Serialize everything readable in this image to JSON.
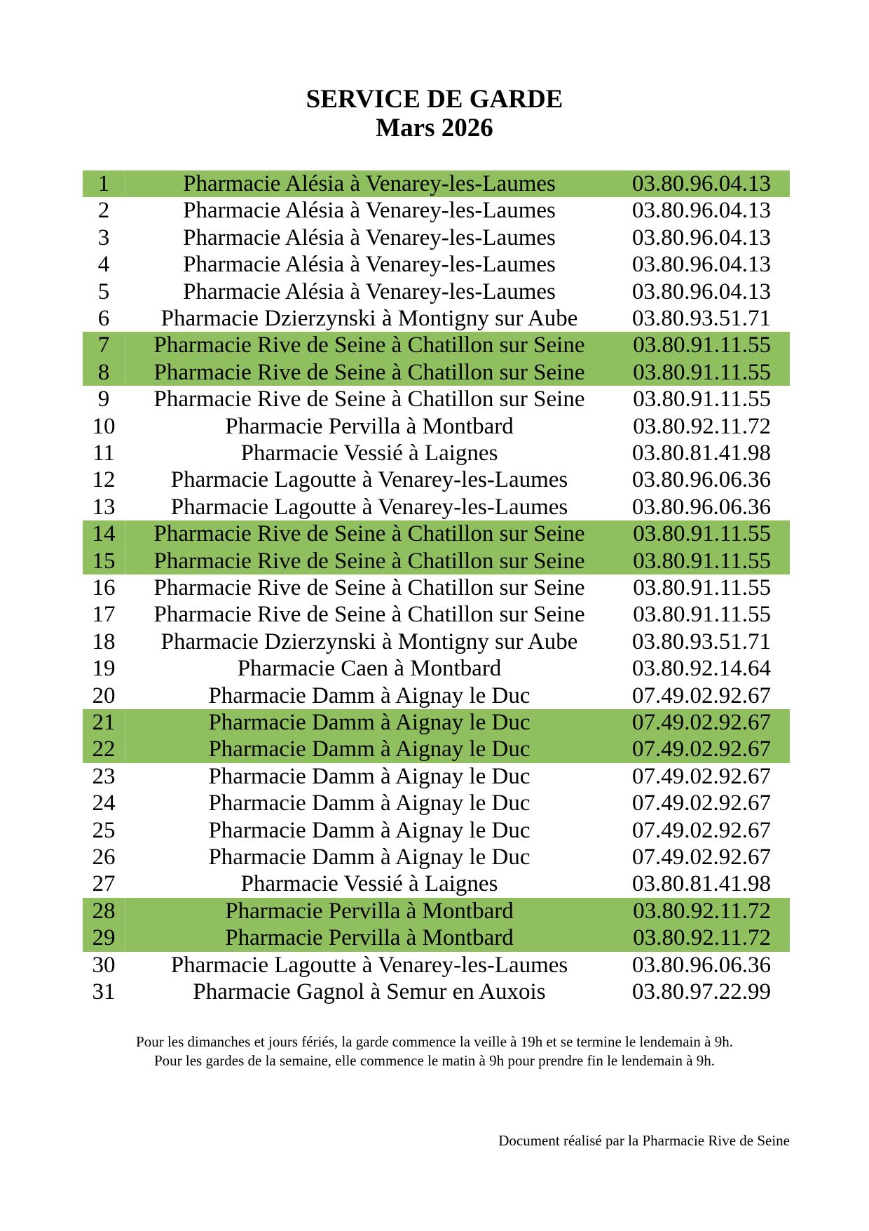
{
  "header": {
    "title": "SERVICE DE GARDE",
    "subtitle": "Mars 2026"
  },
  "highlight_color": "#8fbf5f",
  "rows": [
    {
      "day": "1",
      "pharmacy": "Pharmacie Alésia à Venarey-les-Laumes",
      "phone": "03.80.96.04.13",
      "highlighted": true
    },
    {
      "day": "2",
      "pharmacy": "Pharmacie Alésia à Venarey-les-Laumes",
      "phone": "03.80.96.04.13",
      "highlighted": false
    },
    {
      "day": "3",
      "pharmacy": "Pharmacie Alésia à Venarey-les-Laumes",
      "phone": "03.80.96.04.13",
      "highlighted": false
    },
    {
      "day": "4",
      "pharmacy": "Pharmacie Alésia à Venarey-les-Laumes",
      "phone": "03.80.96.04.13",
      "highlighted": false
    },
    {
      "day": "5",
      "pharmacy": "Pharmacie Alésia à Venarey-les-Laumes",
      "phone": "03.80.96.04.13",
      "highlighted": false
    },
    {
      "day": "6",
      "pharmacy": "Pharmacie Dzierzynski à Montigny sur Aube",
      "phone": "03.80.93.51.71",
      "highlighted": false
    },
    {
      "day": "7",
      "pharmacy": "Pharmacie Rive de Seine à Chatillon sur Seine",
      "phone": "03.80.91.11.55",
      "highlighted": true
    },
    {
      "day": "8",
      "pharmacy": "Pharmacie Rive de Seine à Chatillon sur Seine",
      "phone": "03.80.91.11.55",
      "highlighted": true
    },
    {
      "day": "9",
      "pharmacy": "Pharmacie Rive de Seine à Chatillon sur Seine",
      "phone": "03.80.91.11.55",
      "highlighted": false
    },
    {
      "day": "10",
      "pharmacy": "Pharmacie Pervilla à Montbard",
      "phone": "03.80.92.11.72",
      "highlighted": false
    },
    {
      "day": "11",
      "pharmacy": "Pharmacie Vessié à Laignes",
      "phone": "03.80.81.41.98",
      "highlighted": false
    },
    {
      "day": "12",
      "pharmacy": "Pharmacie Lagoutte à Venarey-les-Laumes",
      "phone": "03.80.96.06.36",
      "highlighted": false
    },
    {
      "day": "13",
      "pharmacy": "Pharmacie Lagoutte à Venarey-les-Laumes",
      "phone": "03.80.96.06.36",
      "highlighted": false
    },
    {
      "day": "14",
      "pharmacy": "Pharmacie Rive de Seine à Chatillon sur Seine",
      "phone": "03.80.91.11.55",
      "highlighted": true
    },
    {
      "day": "15",
      "pharmacy": "Pharmacie Rive de Seine à Chatillon sur Seine",
      "phone": "03.80.91.11.55",
      "highlighted": true
    },
    {
      "day": "16",
      "pharmacy": "Pharmacie Rive de Seine à Chatillon sur Seine",
      "phone": "03.80.91.11.55",
      "highlighted": false
    },
    {
      "day": "17",
      "pharmacy": "Pharmacie Rive de Seine à Chatillon sur Seine",
      "phone": "03.80.91.11.55",
      "highlighted": false
    },
    {
      "day": "18",
      "pharmacy": "Pharmacie Dzierzynski à Montigny sur Aube",
      "phone": "03.80.93.51.71",
      "highlighted": false
    },
    {
      "day": "19",
      "pharmacy": "Pharmacie Caen à Montbard",
      "phone": "03.80.92.14.64",
      "highlighted": false
    },
    {
      "day": "20",
      "pharmacy": "Pharmacie Damm à Aignay le Duc",
      "phone": "07.49.02.92.67",
      "highlighted": false
    },
    {
      "day": "21",
      "pharmacy": "Pharmacie Damm à Aignay le Duc",
      "phone": "07.49.02.92.67",
      "highlighted": true
    },
    {
      "day": "22",
      "pharmacy": "Pharmacie Damm à Aignay le Duc",
      "phone": "07.49.02.92.67",
      "highlighted": true
    },
    {
      "day": "23",
      "pharmacy": "Pharmacie Damm à Aignay le Duc",
      "phone": "07.49.02.92.67",
      "highlighted": false
    },
    {
      "day": "24",
      "pharmacy": "Pharmacie Damm à Aignay le Duc",
      "phone": "07.49.02.92.67",
      "highlighted": false
    },
    {
      "day": "25",
      "pharmacy": "Pharmacie Damm à Aignay le Duc",
      "phone": "07.49.02.92.67",
      "highlighted": false
    },
    {
      "day": "26",
      "pharmacy": "Pharmacie Damm à Aignay le Duc",
      "phone": "07.49.02.92.67",
      "highlighted": false
    },
    {
      "day": "27",
      "pharmacy": "Pharmacie Vessié à Laignes",
      "phone": "03.80.81.41.98",
      "highlighted": false
    },
    {
      "day": "28",
      "pharmacy": "Pharmacie Pervilla à Montbard",
      "phone": "03.80.92.11.72",
      "highlighted": true
    },
    {
      "day": "29",
      "pharmacy": "Pharmacie Pervilla à Montbard",
      "phone": "03.80.92.11.72",
      "highlighted": true
    },
    {
      "day": "30",
      "pharmacy": "Pharmacie Lagoutte à Venarey-les-Laumes",
      "phone": "03.80.96.06.36",
      "highlighted": false
    },
    {
      "day": "31",
      "pharmacy": "Pharmacie Gagnol à Semur en Auxois",
      "phone": "03.80.97.22.99",
      "highlighted": false
    }
  ],
  "notes": [
    "Pour les dimanches et jours fériés, la garde commence la veille à 19h et se termine le lendemain à 9h.",
    "Pour les gardes de la semaine, elle commence le matin à 9h pour prendre fin le lendemain à 9h."
  ],
  "credit": "Document réalisé par la Pharmacie Rive de Seine"
}
